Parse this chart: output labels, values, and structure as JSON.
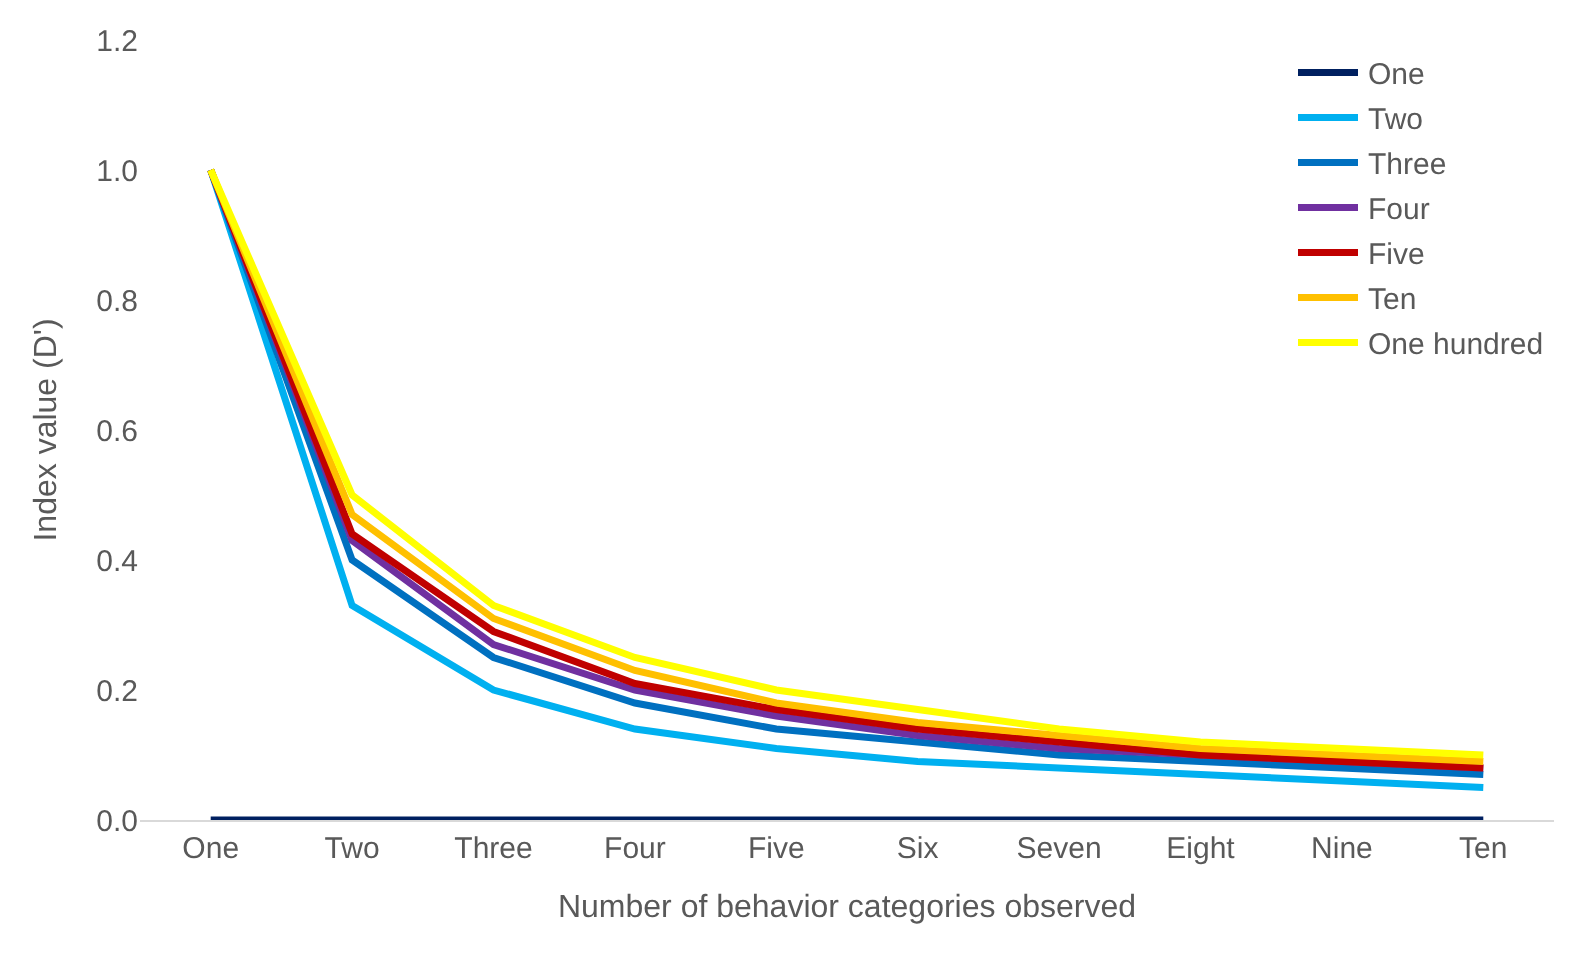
{
  "chart_data": {
    "type": "line",
    "xlabel": "Number of behavior categories observed",
    "ylabel": "Index value (D')",
    "categories": [
      "One",
      "Two",
      "Three",
      "Four",
      "Five",
      "Six",
      "Seven",
      "Eight",
      "Nine",
      "Ten"
    ],
    "series": [
      {
        "name": "One",
        "color": "#002060",
        "values": [
          0,
          0,
          0,
          0,
          0,
          0,
          0,
          0,
          0,
          0
        ]
      },
      {
        "name": "Two",
        "color": "#00b0f0",
        "values": [
          1.0,
          0.33,
          0.2,
          0.14,
          0.11,
          0.09,
          0.08,
          0.07,
          0.06,
          0.05
        ]
      },
      {
        "name": "Three",
        "color": "#0070c0",
        "values": [
          1.0,
          0.4,
          0.25,
          0.18,
          0.14,
          0.12,
          0.1,
          0.09,
          0.08,
          0.07
        ]
      },
      {
        "name": "Four",
        "color": "#7030a0",
        "values": [
          1.0,
          0.43,
          0.27,
          0.2,
          0.16,
          0.13,
          0.11,
          0.1,
          0.09,
          0.08
        ]
      },
      {
        "name": "Five",
        "color": "#c00000",
        "values": [
          1.0,
          0.44,
          0.29,
          0.21,
          0.17,
          0.14,
          0.12,
          0.1,
          0.09,
          0.08
        ]
      },
      {
        "name": "Ten",
        "color": "#ffc000",
        "values": [
          1.0,
          0.47,
          0.31,
          0.23,
          0.18,
          0.15,
          0.13,
          0.11,
          0.1,
          0.09
        ]
      },
      {
        "name": "One hundred",
        "color": "#ffff00",
        "values": [
          1.0,
          0.5,
          0.33,
          0.25,
          0.2,
          0.17,
          0.14,
          0.12,
          0.11,
          0.1
        ]
      }
    ],
    "ylim": [
      0,
      1.2
    ],
    "yticks": [
      {
        "value": 0,
        "label": "0.0"
      },
      {
        "value": 0.2,
        "label": "0.2"
      },
      {
        "value": 0.4,
        "label": "0.4"
      },
      {
        "value": 0.6,
        "label": "0.6"
      },
      {
        "value": 0.8,
        "label": "0.8"
      },
      {
        "value": 1.0,
        "label": "1.0"
      },
      {
        "value": 1.2,
        "label": "1.2"
      }
    ],
    "grid": false,
    "legend": "top right",
    "marker": "none",
    "line_style": "solid"
  }
}
